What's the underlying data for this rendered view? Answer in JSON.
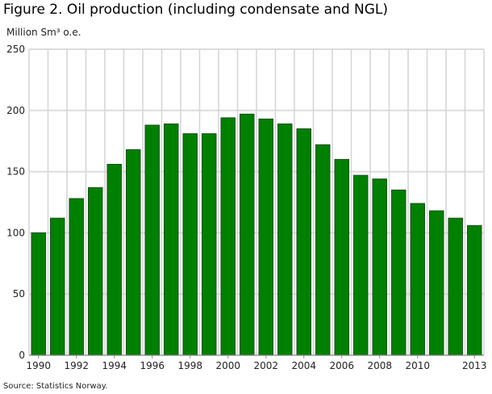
{
  "chart_data": {
    "type": "bar",
    "title": "Figure 2. Oil production (including condensate and NGL)",
    "ylabel": "Million Sm³ o.e.",
    "xlabel": "",
    "source": "Source: Statistics Norway.",
    "categories": [
      "1990",
      "1991",
      "1992",
      "1993",
      "1994",
      "1995",
      "1996",
      "1997",
      "1998",
      "1999",
      "2000",
      "2001",
      "2002",
      "2003",
      "2004",
      "2005",
      "2006",
      "2007",
      "2008",
      "2009",
      "2010",
      "2011",
      "2012",
      "2013"
    ],
    "x_tick_labels": [
      "1990",
      "",
      "1992",
      "",
      "1994",
      "",
      "1996",
      "",
      "1998",
      "",
      "2000",
      "",
      "2002",
      "",
      "2004",
      "",
      "2006",
      "",
      "2008",
      "",
      "2010",
      "",
      "",
      "2013"
    ],
    "values": [
      100,
      112,
      128,
      137,
      156,
      168,
      188,
      189,
      181,
      181,
      194,
      197,
      193,
      189,
      185,
      172,
      160,
      147,
      144,
      135,
      124,
      118,
      112,
      106
    ],
    "ylim": [
      0,
      250
    ],
    "yticks": [
      0,
      50,
      100,
      150,
      200,
      250
    ],
    "grid": true,
    "bar_color": "#008000"
  }
}
